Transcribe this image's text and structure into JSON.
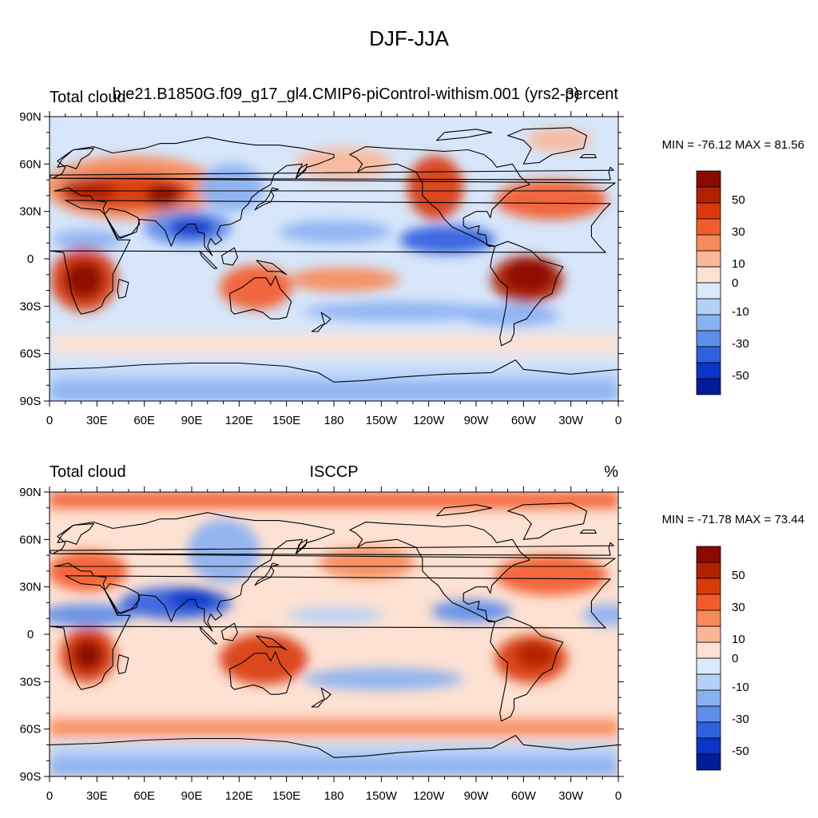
{
  "figure": {
    "title": "DJF-JJA"
  },
  "x_ticks": [
    "0",
    "30E",
    "60E",
    "90E",
    "120E",
    "150E",
    "180",
    "150W",
    "120W",
    "90W",
    "60W",
    "30W",
    "0"
  ],
  "y_ticks": [
    "90N",
    "60N",
    "30N",
    "0",
    "30S",
    "60S",
    "90S"
  ],
  "colorbar_labels": [
    "50",
    "30",
    "10",
    "0",
    "-10",
    "-30",
    "-50"
  ],
  "palette": {
    "reds": [
      "#8a0a00",
      "#b02100",
      "#d93a0b",
      "#f25c2d",
      "#f78a5a",
      "#fbb698",
      "#fde1d2"
    ],
    "blues": [
      "#dbe9fb",
      "#b5d0f8",
      "#8ab1f2",
      "#5d8cea",
      "#2f60de",
      "#0a35c8",
      "#001c9b"
    ],
    "coast": "#000000",
    "ocean_background": "#d7e6fa"
  },
  "panels": [
    {
      "id": "model",
      "left_label": "Total cloud",
      "center_label": "b.e21.B1850G.f09_g17_gl4.CMIP6-piControl-withism.001 (yrs2-3)",
      "right_label": "percent",
      "stats": "MIN = -76.12 MAX =  81.56"
    },
    {
      "id": "obs",
      "left_label": "Total cloud",
      "center_label": "ISCCP",
      "right_label": "%",
      "stats": "MIN = -71.78 MAX =  73.44"
    }
  ],
  "chart_data": [
    {
      "type": "heatmap",
      "title": "DJF-JJA",
      "variable": "Total cloud",
      "case": "b.e21.B1850G.f09_g17_gl4.CMIP6-piControl-withism.001 (yrs2-3)",
      "units": "percent",
      "x_range_deg_east": [
        0,
        360
      ],
      "y_range_deg_north": [
        -90,
        90
      ],
      "min": -76.12,
      "max": 81.56,
      "contour_levels": [
        -60,
        -50,
        -40,
        -30,
        -20,
        -10,
        0,
        10,
        20,
        30,
        40,
        50,
        60
      ],
      "features": [
        {
          "lon": 20,
          "lat": -12,
          "value": 70
        },
        {
          "lon": 300,
          "lat": -12,
          "value": 75
        },
        {
          "lon": 80,
          "lat": 38,
          "value": 55
        },
        {
          "lon": 40,
          "lat": 42,
          "value": 45
        },
        {
          "lon": 125,
          "lat": -18,
          "value": 30
        },
        {
          "lon": 237,
          "lat": 42,
          "value": 45
        },
        {
          "lon": 300,
          "lat": 32,
          "value": 35
        },
        {
          "lon": 85,
          "lat": 18,
          "value": -60
        },
        {
          "lon": 255,
          "lat": 12,
          "value": -55
        },
        {
          "lon": 40,
          "lat": 8,
          "value": -35
        },
        {
          "lon": 140,
          "lat": 10,
          "value": -30
        },
        {
          "lon": 180,
          "lat": -35,
          "value": -25
        },
        {
          "lon": 180,
          "lat": -80,
          "value": -30
        }
      ]
    },
    {
      "type": "heatmap",
      "title": "DJF-JJA",
      "variable": "Total cloud",
      "case": "ISCCP",
      "units": "%",
      "x_range_deg_east": [
        0,
        360
      ],
      "y_range_deg_north": [
        -90,
        90
      ],
      "min": -71.78,
      "max": 73.44,
      "contour_levels": [
        -60,
        -50,
        -40,
        -30,
        -20,
        -10,
        0,
        10,
        20,
        30,
        40,
        50,
        60
      ],
      "features": [
        {
          "lon": 22,
          "lat": -15,
          "value": 60
        },
        {
          "lon": 305,
          "lat": -15,
          "value": 45
        },
        {
          "lon": 130,
          "lat": -20,
          "value": 45
        },
        {
          "lon": 30,
          "lat": 35,
          "value": 30
        },
        {
          "lon": 200,
          "lat": 78,
          "value": 30
        },
        {
          "lon": 320,
          "lat": 35,
          "value": 30
        },
        {
          "lon": 85,
          "lat": 20,
          "value": -60
        },
        {
          "lon": 30,
          "lat": 10,
          "value": -45
        },
        {
          "lon": 260,
          "lat": 15,
          "value": -35
        },
        {
          "lon": 110,
          "lat": 45,
          "value": -35
        },
        {
          "lon": 180,
          "lat": -30,
          "value": -25
        },
        {
          "lon": 180,
          "lat": -78,
          "value": -30
        }
      ]
    }
  ]
}
